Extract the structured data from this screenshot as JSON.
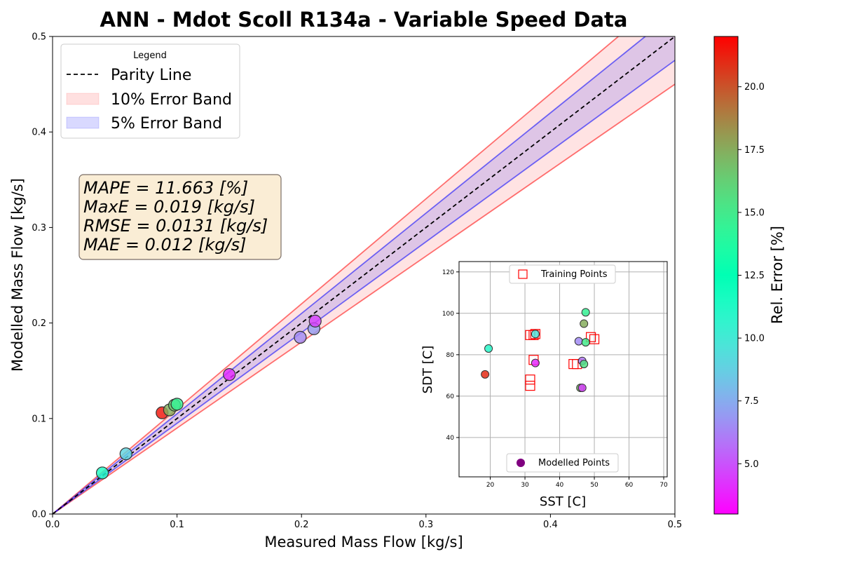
{
  "chart_data": [
    {
      "type": "scatter",
      "title": "ANN - Mdot Scoll R134a - Variable Speed Data",
      "xlabel": "Measured Mass Flow [kg/s]",
      "ylabel": "Modelled Mass Flow [kg/s]",
      "xlim": [
        0,
        0.5
      ],
      "ylim": [
        0,
        0.5
      ],
      "xticks": [
        "0.0",
        "0.1",
        "0.2",
        "0.3",
        "0.4",
        "0.5"
      ],
      "yticks": [
        "0.0",
        "0.1",
        "0.2",
        "0.3",
        "0.4",
        "0.5"
      ],
      "grid": false,
      "legend": {
        "title": "Legend",
        "placement": "upper-left",
        "entries": [
          {
            "label": "Parity Line",
            "style": "dashed-line",
            "color": "#000000"
          },
          {
            "label": "10% Error Band",
            "style": "patch",
            "color": "#ff0000"
          },
          {
            "label": "5% Error Band",
            "style": "patch",
            "color": "#0000ff"
          }
        ]
      },
      "bands": [
        {
          "name": "10% Error Band",
          "fraction": 0.1,
          "fill": "#ff0000",
          "edge": "#ff0000"
        },
        {
          "name": "5% Error Band",
          "fraction": 0.05,
          "fill": "#0000ff",
          "edge": "#0000ff"
        }
      ],
      "stats": [
        "MAPE = 11.663 [%]",
        "MaxE = 0.019 [kg/s]",
        "RMSE = 0.0131 [kg/s]",
        "MAE = 0.012 [kg/s]"
      ],
      "points": [
        {
          "x": 0.04,
          "y": 0.043,
          "err": 11.5
        },
        {
          "x": 0.059,
          "y": 0.063,
          "err": 9.0
        },
        {
          "x": 0.088,
          "y": 0.106,
          "err": 21.5
        },
        {
          "x": 0.094,
          "y": 0.109,
          "err": 17.5
        },
        {
          "x": 0.098,
          "y": 0.114,
          "err": 16.5
        },
        {
          "x": 0.1,
          "y": 0.115,
          "err": 14.5
        },
        {
          "x": 0.142,
          "y": 0.146,
          "err": 4.0
        },
        {
          "x": 0.199,
          "y": 0.185,
          "err": 6.5
        },
        {
          "x": 0.21,
          "y": 0.194,
          "err": 7.0
        },
        {
          "x": 0.211,
          "y": 0.202,
          "err": 4.5
        }
      ],
      "colorbar": {
        "label": "Rel. Error [%]",
        "range": [
          3.0,
          22.0
        ],
        "ticks": [
          "5.0",
          "7.5",
          "10.0",
          "12.5",
          "15.0",
          "17.5",
          "20.0"
        ],
        "colormap": "rainbow"
      }
    },
    {
      "type": "scatter",
      "xlabel": "SST [C]",
      "ylabel": "SDT [C]",
      "xlim": [
        11,
        71
      ],
      "ylim": [
        21,
        125
      ],
      "xticks": [
        "20",
        "30",
        "40",
        "50",
        "60",
        "70"
      ],
      "yticks": [
        "40",
        "60",
        "80",
        "100",
        "120"
      ],
      "grid": true,
      "legend_training": "Training Points",
      "legend_modelled": "Modelled Points",
      "training_points": [
        [
          31.5,
          89.5
        ],
        [
          32.5,
          89.5
        ],
        [
          33.0,
          90.0
        ],
        [
          32.5,
          77.5
        ],
        [
          31.5,
          68.0
        ],
        [
          31.5,
          65.0
        ],
        [
          44.0,
          75.5
        ],
        [
          45.0,
          75.5
        ],
        [
          49.0,
          88.5
        ],
        [
          50.0,
          87.5
        ]
      ],
      "modelled_points": [
        {
          "x": 19.5,
          "y": 83.0,
          "err": 11.0
        },
        {
          "x": 18.5,
          "y": 70.5,
          "err": 21.0
        },
        {
          "x": 33.0,
          "y": 90.0,
          "err": 9.5
        },
        {
          "x": 33.0,
          "y": 76.0,
          "err": 4.0
        },
        {
          "x": 45.5,
          "y": 86.5,
          "err": 6.5
        },
        {
          "x": 46.0,
          "y": 64.0,
          "err": 17.0
        },
        {
          "x": 46.5,
          "y": 64.0,
          "err": 4.5
        },
        {
          "x": 46.5,
          "y": 77.0,
          "err": 6.0
        },
        {
          "x": 47.0,
          "y": 95.0,
          "err": 17.5
        },
        {
          "x": 47.0,
          "y": 75.5,
          "err": 15.5
        },
        {
          "x": 47.5,
          "y": 86.0,
          "err": 15.0
        },
        {
          "x": 47.5,
          "y": 100.5,
          "err": 14.5
        }
      ]
    }
  ]
}
